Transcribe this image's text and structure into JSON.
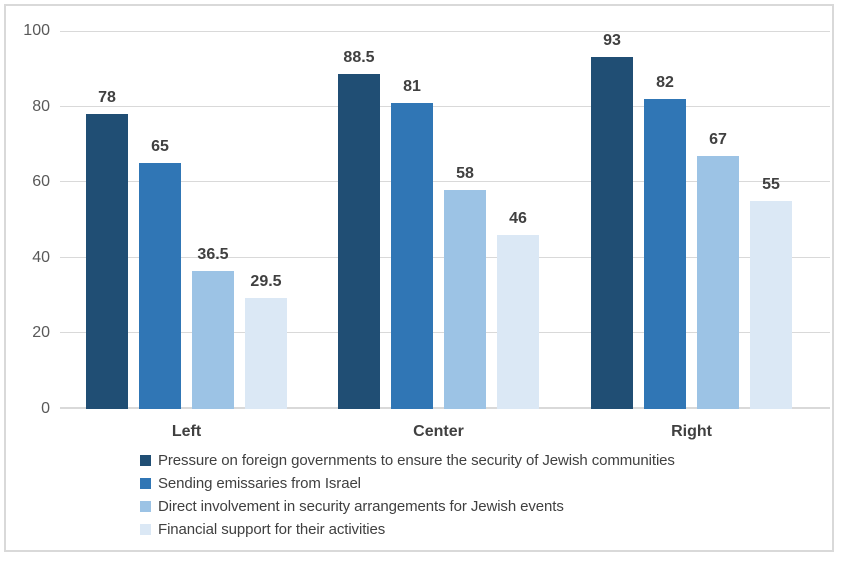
{
  "chart_data": {
    "type": "bar",
    "categories": [
      "Left",
      "Center",
      "Right"
    ],
    "series": [
      {
        "name": "Pressure on foreign governments to ensure the security of Jewish communities",
        "color": "#204E74",
        "values": [
          78,
          88.5,
          93
        ]
      },
      {
        "name": "Sending emissaries from Israel",
        "color": "#3076B5",
        "values": [
          65,
          81,
          82
        ]
      },
      {
        "name": "Direct involvement in security arrangements for Jewish events",
        "color": "#9CC3E5",
        "values": [
          36.5,
          58,
          67
        ]
      },
      {
        "name": "Financial support for their activities",
        "color": "#DBE8F5",
        "values": [
          29.5,
          46,
          55
        ]
      }
    ],
    "title": "",
    "xlabel": "",
    "ylabel": "",
    "ylim": [
      0,
      100
    ],
    "yticks": [
      0,
      20,
      40,
      60,
      80,
      100
    ],
    "grid": true,
    "data_labels": true,
    "legend_position": "bottom-left"
  },
  "colors": {
    "background": "#FFFFFF",
    "border": "#D9D9D9",
    "gridline": "#D9D9D9",
    "axis_line": "#D9D9D9",
    "tick_label": "#595959",
    "data_label": "#404040",
    "category_label": "#404040",
    "legend_text": "#404040"
  }
}
